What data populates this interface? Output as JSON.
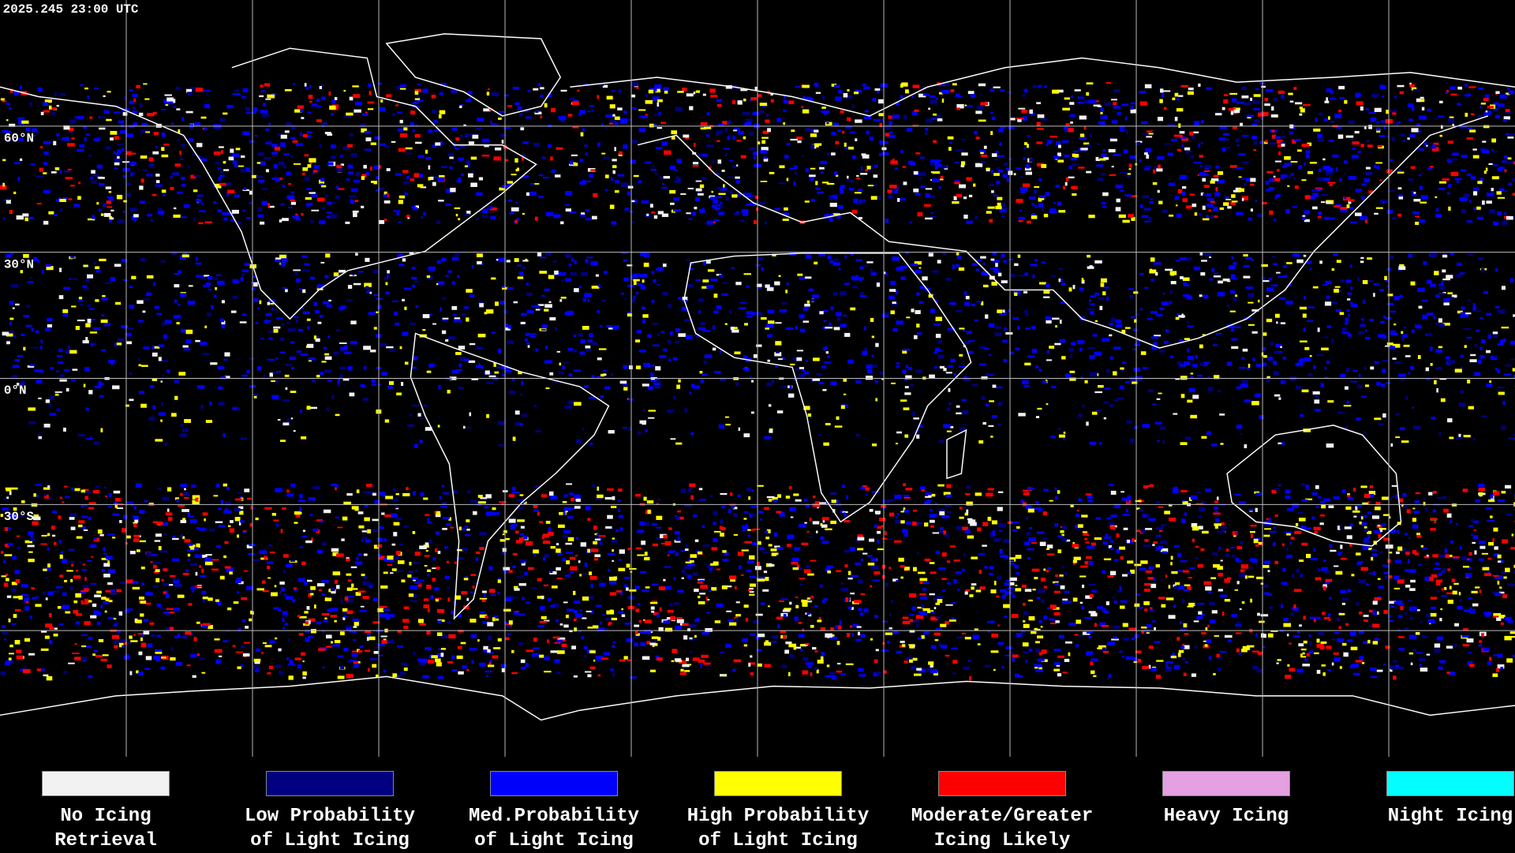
{
  "header": {
    "timestamp": "2025.245 23:00 UTC"
  },
  "map": {
    "latitude_labels": [
      "60°N",
      "30°N",
      "0°N",
      "30°S"
    ]
  },
  "legend": [
    {
      "lines": [
        "No Icing",
        "Retrieval"
      ],
      "color": "#f2f2f2"
    },
    {
      "lines": [
        "Low Probability",
        "of Light Icing"
      ],
      "color": "#000080"
    },
    {
      "lines": [
        "Med.Probability",
        "of Light Icing"
      ],
      "color": "#0000ff"
    },
    {
      "lines": [
        "High Probability",
        "of Light Icing"
      ],
      "color": "#ffff00"
    },
    {
      "lines": [
        "Moderate/Greater",
        "Icing Likely"
      ],
      "color": "#ff0000"
    },
    {
      "lines": [
        "Heavy Icing"
      ],
      "color": "#e4a0e0"
    },
    {
      "lines": [
        "Night Icing"
      ],
      "color": "#00ffff"
    }
  ]
}
